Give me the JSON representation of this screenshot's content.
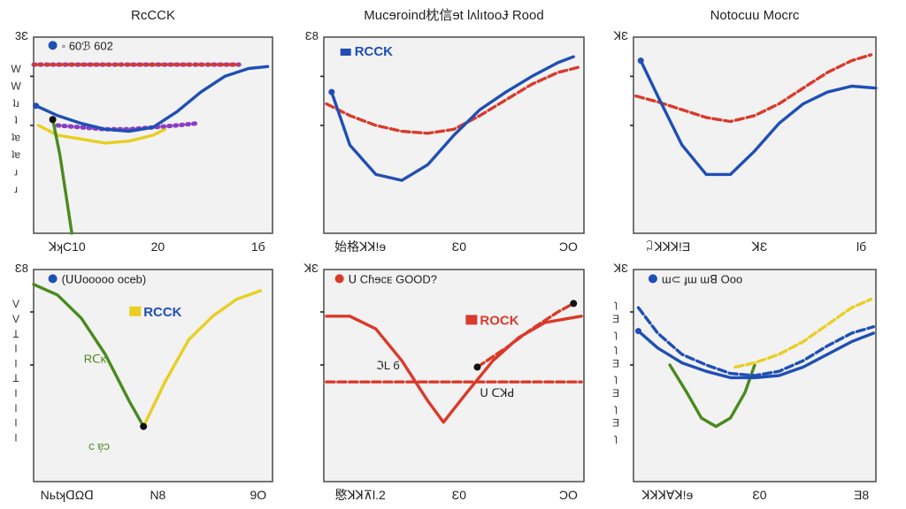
{
  "page": {
    "background": "#ffffff",
    "panel_background": "#f2f2f2",
    "frame": "#555555"
  },
  "colors": {
    "blue": "#1f4fb5",
    "red": "#d93a2b",
    "green": "#4a8a1e",
    "yellow": "#e8cf22",
    "purple": "#8a3fc0"
  },
  "chart_data": [
    {
      "type": "line",
      "title": "RcCCK",
      "ytick_top": "3Ɛ",
      "ylabel": "W W ʇɹ ʇ ʇɐ ʇɐ ɹ ɹ",
      "xticks": [
        "ꓘʞC10",
        "20",
        "1б"
      ],
      "legend": [
        {
          "label": "◦ 60ℬ 602",
          "color": "#1f4fb5"
        }
      ],
      "series": [
        {
          "color": "#8a3fc0",
          "style": "dotted",
          "x": [
            0,
            0.1,
            0.2,
            0.3,
            0.4,
            0.5,
            0.6,
            0.7,
            0.8,
            0.86
          ],
          "y": [
            0.86,
            0.86,
            0.86,
            0.86,
            0.86,
            0.86,
            0.86,
            0.86,
            0.86,
            0.86
          ]
        },
        {
          "color": "#d93a2b",
          "style": "dashed",
          "x": [
            0,
            0.1,
            0.2,
            0.3,
            0.4,
            0.5,
            0.6,
            0.7,
            0.8,
            0.86
          ],
          "y": [
            0.86,
            0.86,
            0.86,
            0.86,
            0.86,
            0.86,
            0.86,
            0.86,
            0.86,
            0.86
          ]
        },
        {
          "color": "#e8cf22",
          "style": "solid",
          "x": [
            0.02,
            0.1,
            0.2,
            0.3,
            0.4,
            0.5,
            0.55
          ],
          "y": [
            0.55,
            0.5,
            0.48,
            0.46,
            0.47,
            0.5,
            0.53
          ]
        },
        {
          "color": "#8a3fc0",
          "style": "dotted",
          "x": [
            0.1,
            0.2,
            0.3,
            0.4,
            0.5,
            0.6,
            0.68
          ],
          "y": [
            0.55,
            0.54,
            0.53,
            0.53,
            0.54,
            0.55,
            0.56
          ]
        },
        {
          "color": "#1f4fb5",
          "style": "solid",
          "x": [
            0.01,
            0.1,
            0.2,
            0.3,
            0.4,
            0.5,
            0.6,
            0.7,
            0.8,
            0.9,
            0.98
          ],
          "y": [
            0.65,
            0.6,
            0.56,
            0.53,
            0.52,
            0.54,
            0.62,
            0.72,
            0.8,
            0.84,
            0.85
          ]
        },
        {
          "color": "#4a8a1e",
          "style": "solid",
          "x": [
            0.08,
            0.11,
            0.14,
            0.16
          ],
          "y": [
            0.58,
            0.4,
            0.16,
            0.0
          ]
        }
      ],
      "points": [
        {
          "x": 0.08,
          "y": 0.58
        }
      ]
    },
    {
      "type": "line",
      "title": "Mucɘroind枕信ɘt ƖʌlıtooɈ Rood",
      "ytick_top": "Ɛ8",
      "xticks": [
        "始格ꓘꓘ!ɘ",
        "Ɛ0",
        "ƆO"
      ],
      "legend": [
        {
          "label": "RCCK",
          "color": "#1f4fb5"
        }
      ],
      "series": [
        {
          "color": "#d93a2b",
          "style": "dashed",
          "x": [
            0.01,
            0.1,
            0.2,
            0.3,
            0.4,
            0.5,
            0.6,
            0.7,
            0.8,
            0.9,
            0.99
          ],
          "y": [
            0.66,
            0.6,
            0.55,
            0.52,
            0.51,
            0.53,
            0.6,
            0.68,
            0.76,
            0.82,
            0.85
          ]
        },
        {
          "color": "#1f4fb5",
          "style": "solid",
          "x": [
            0.03,
            0.1,
            0.2,
            0.3,
            0.4,
            0.5,
            0.6,
            0.7,
            0.8,
            0.9,
            0.96
          ],
          "y": [
            0.72,
            0.45,
            0.3,
            0.27,
            0.35,
            0.5,
            0.63,
            0.72,
            0.8,
            0.87,
            0.9
          ]
        }
      ]
    },
    {
      "type": "line",
      "title": "Notocuu Mocrc",
      "ytick_top": "ꓘƐ",
      "xticks": [
        "꒜ꓘꓘꓘ!Ǝ",
        "ꓘƐ",
        "Ɩб"
      ],
      "series": [
        {
          "color": "#d93a2b",
          "style": "dashed",
          "x": [
            0.01,
            0.1,
            0.2,
            0.3,
            0.4,
            0.5,
            0.6,
            0.7,
            0.8,
            0.9,
            0.98
          ],
          "y": [
            0.7,
            0.67,
            0.63,
            0.59,
            0.57,
            0.6,
            0.66,
            0.74,
            0.82,
            0.88,
            0.91
          ]
        },
        {
          "color": "#1f4fb5",
          "style": "solid",
          "x": [
            0.03,
            0.1,
            0.2,
            0.3,
            0.4,
            0.5,
            0.6,
            0.7,
            0.8,
            0.9,
            1.0
          ],
          "y": [
            0.88,
            0.7,
            0.45,
            0.3,
            0.3,
            0.42,
            0.56,
            0.66,
            0.72,
            0.75,
            0.74
          ]
        }
      ]
    },
    {
      "type": "line",
      "ytick_top": "Ɛ8",
      "ylabel": "V V Ʇ Ɩ Ɩ Ʇ Ɩ Ɩ Ɩ Ɩ",
      "xticks": [
        "NьtʞᗡΩꓷ",
        "N8",
        "9O"
      ],
      "legend": [
        {
          "label": "(ᑌᑌooooo oceb)",
          "color": "#1f4fb5"
        }
      ],
      "annotations": [
        {
          "text": "RCCK",
          "color": "#1f4fb5",
          "marker": "#e8cf22"
        },
        {
          "text": "Rᑕĸ",
          "color": "#4a8a1e"
        },
        {
          "text": "c ɐ̩ɔ",
          "color": "#4a8a1e"
        }
      ],
      "series": [
        {
          "color": "#4a8a1e",
          "style": "solid",
          "x": [
            0.0,
            0.1,
            0.2,
            0.3,
            0.4,
            0.46
          ],
          "y": [
            0.93,
            0.88,
            0.77,
            0.6,
            0.38,
            0.26
          ]
        },
        {
          "color": "#e8cf22",
          "style": "solid",
          "x": [
            0.46,
            0.55,
            0.65,
            0.75,
            0.85,
            0.95
          ],
          "y": [
            0.26,
            0.47,
            0.67,
            0.78,
            0.86,
            0.9
          ]
        }
      ],
      "points": [
        {
          "x": 0.46,
          "y": 0.26
        }
      ]
    },
    {
      "type": "line",
      "ytick_top": "ꓘƐ",
      "xticks": [
        "愍ꓘꓘ⊼Ɩ.2",
        "Ɛ0",
        "ƆO"
      ],
      "legend": [
        {
          "label": "ᑌ Cɦɘᴄᴇ GOOD?",
          "color": "#d93a2b"
        }
      ],
      "annotations": [
        {
          "text": "ROCK",
          "color": "#d93a2b",
          "marker": "#d93a2b"
        },
        {
          "text": "ℑL б",
          "color": "#222222"
        },
        {
          "text": "ᑌ ᑕꓘꓒ",
          "color": "#222222"
        }
      ],
      "series": [
        {
          "color": "#d93a2b",
          "style": "dashed",
          "x": [
            0.01,
            0.2,
            0.4,
            0.6,
            0.8,
            0.99
          ],
          "y": [
            0.47,
            0.47,
            0.47,
            0.47,
            0.47,
            0.47
          ]
        },
        {
          "color": "#d93a2b",
          "style": "solid",
          "x": [
            0.01,
            0.1,
            0.2,
            0.3,
            0.4,
            0.46,
            0.55,
            0.65,
            0.75,
            0.85,
            0.99
          ],
          "y": [
            0.78,
            0.78,
            0.72,
            0.57,
            0.38,
            0.28,
            0.42,
            0.57,
            0.68,
            0.75,
            0.78
          ]
        },
        {
          "color": "#d93a2b",
          "style": "dashed",
          "x": [
            0.59,
            0.7,
            0.8,
            0.9,
            0.96
          ],
          "y": [
            0.54,
            0.63,
            0.72,
            0.8,
            0.84
          ]
        }
      ],
      "points": [
        {
          "x": 0.59,
          "y": 0.54
        },
        {
          "x": 0.96,
          "y": 0.84
        }
      ]
    },
    {
      "type": "line",
      "ytick_top": "ꓘƐ",
      "ylabel": "ɿ Ǝ ɿ ɿ Ǝ ɿ Ǝ ɿ Ǝ ɿ",
      "xticks": [
        "ꓘꓘꓘ∀ꓘ!ɘ",
        "Ɛ0",
        "Ǝ8"
      ],
      "legend": [
        {
          "label": "ɯ⊂ ɟɯ ɯꓭ Ooo",
          "color": "#1f4fb5"
        }
      ],
      "series": [
        {
          "color": "#4a8a1e",
          "style": "solid",
          "x": [
            0.15,
            0.22,
            0.28,
            0.34,
            0.4,
            0.46,
            0.5
          ],
          "y": [
            0.55,
            0.42,
            0.3,
            0.26,
            0.3,
            0.42,
            0.55
          ]
        },
        {
          "color": "#e8cf22",
          "style": "dashed",
          "x": [
            0.42,
            0.5,
            0.6,
            0.7,
            0.8,
            0.9,
            0.98
          ],
          "y": [
            0.54,
            0.56,
            0.6,
            0.66,
            0.74,
            0.82,
            0.86
          ]
        },
        {
          "color": "#1f4fb5",
          "style": "dashed",
          "x": [
            0.02,
            0.1,
            0.2,
            0.3,
            0.4,
            0.5,
            0.6,
            0.7,
            0.8,
            0.9,
            0.99
          ],
          "y": [
            0.82,
            0.7,
            0.6,
            0.55,
            0.51,
            0.5,
            0.52,
            0.57,
            0.64,
            0.7,
            0.73
          ]
        },
        {
          "color": "#1f4fb5",
          "style": "solid",
          "x": [
            0.02,
            0.1,
            0.2,
            0.3,
            0.4,
            0.5,
            0.6,
            0.7,
            0.8,
            0.9,
            0.99
          ],
          "y": [
            0.71,
            0.63,
            0.56,
            0.52,
            0.49,
            0.49,
            0.5,
            0.54,
            0.6,
            0.66,
            0.7
          ]
        }
      ]
    }
  ]
}
